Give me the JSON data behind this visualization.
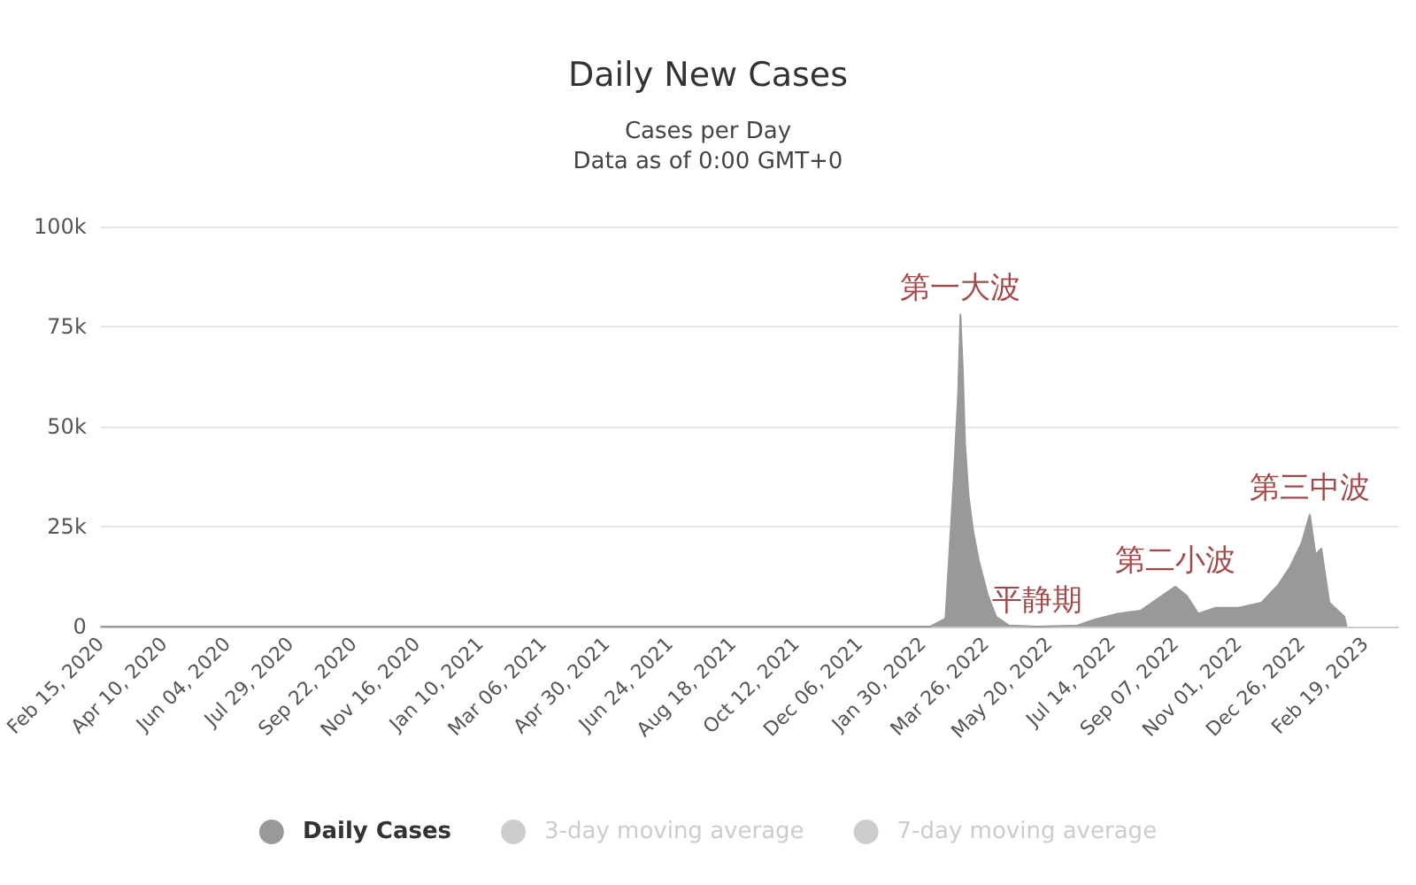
{
  "chart_data": {
    "type": "area",
    "title": "Daily New Cases",
    "subtitle": "Cases per Day\nData as of 0:00 GMT+0",
    "x": [
      "2020-02-15",
      "2022-02-01",
      "2022-02-06",
      "2022-02-19",
      "2022-02-26",
      "2022-03-02",
      "2022-03-04",
      "2022-03-06",
      "2022-03-08",
      "2022-03-11",
      "2022-03-15",
      "2022-03-20",
      "2022-03-28",
      "2022-04-04",
      "2022-04-15",
      "2022-05-10",
      "2022-06-14",
      "2022-06-29",
      "2022-07-19",
      "2022-08-08",
      "2022-08-23",
      "2022-09-07",
      "2022-09-17",
      "2022-09-27",
      "2022-10-12",
      "2022-11-01",
      "2022-11-21",
      "2022-12-06",
      "2022-12-16",
      "2022-12-26",
      "2023-01-02",
      "2023-01-07",
      "2023-01-12",
      "2023-01-19",
      "2023-02-01",
      "2023-02-03"
    ],
    "series": [
      {
        "name": "Daily Cases",
        "color": "#999999",
        "values": [
          0,
          0,
          0,
          2000,
          36000,
          58000,
          78000,
          65000,
          46000,
          33000,
          24000,
          16500,
          7700,
          2500,
          300,
          0,
          300,
          1800,
          3200,
          4000,
          7000,
          10000,
          7700,
          3200,
          4700,
          4700,
          6000,
          10600,
          15000,
          21000,
          28000,
          18000,
          19500,
          6000,
          2500,
          0
        ]
      },
      {
        "name": "3-day moving average",
        "color": "#cccccc",
        "values": [
          null,
          null,
          null,
          null,
          null,
          null,
          null,
          null,
          null,
          null,
          null,
          null,
          null,
          null,
          null,
          null,
          null,
          null,
          null,
          null,
          null,
          null,
          null,
          null,
          null,
          null,
          null,
          null,
          null,
          null,
          null,
          null,
          null,
          null,
          null,
          null
        ]
      },
      {
        "name": "7-day moving average",
        "color": "#cccccc",
        "values": [
          null,
          null,
          null,
          null,
          null,
          null,
          null,
          null,
          null,
          null,
          null,
          null,
          null,
          null,
          null,
          null,
          null,
          null,
          null,
          null,
          null,
          null,
          null,
          null,
          null,
          null,
          null,
          null,
          null,
          null,
          null,
          null,
          null,
          null,
          null,
          null
        ]
      }
    ],
    "xlim": [
      "2020-02-15",
      "2023-03-20"
    ],
    "xticks": [
      {
        "value": "2020-02-15",
        "label": "Feb 15, 2020"
      },
      {
        "value": "2020-04-10",
        "label": "Apr 10, 2020"
      },
      {
        "value": "2020-06-04",
        "label": "Jun 04, 2020"
      },
      {
        "value": "2020-07-29",
        "label": "Jul 29, 2020"
      },
      {
        "value": "2020-09-22",
        "label": "Sep 22, 2020"
      },
      {
        "value": "2020-11-16",
        "label": "Nov 16, 2020"
      },
      {
        "value": "2021-01-10",
        "label": "Jan 10, 2021"
      },
      {
        "value": "2021-03-06",
        "label": "Mar 06, 2021"
      },
      {
        "value": "2021-04-30",
        "label": "Apr 30, 2021"
      },
      {
        "value": "2021-06-24",
        "label": "Jun 24, 2021"
      },
      {
        "value": "2021-08-18",
        "label": "Aug 18, 2021"
      },
      {
        "value": "2021-10-12",
        "label": "Oct 12, 2021"
      },
      {
        "value": "2021-12-06",
        "label": "Dec 06, 2021"
      },
      {
        "value": "2022-01-30",
        "label": "Jan 30, 2022"
      },
      {
        "value": "2022-03-26",
        "label": "Mar 26, 2022"
      },
      {
        "value": "2022-05-20",
        "label": "May 20, 2022"
      },
      {
        "value": "2022-07-14",
        "label": "Jul 14, 2022"
      },
      {
        "value": "2022-09-07",
        "label": "Sep 07, 2022"
      },
      {
        "value": "2022-11-01",
        "label": "Nov 01, 2022"
      },
      {
        "value": "2022-12-26",
        "label": "Dec 26, 2022"
      },
      {
        "value": "2023-02-19",
        "label": "Feb 19, 2023"
      }
    ],
    "ylim": [
      0,
      100000
    ],
    "yticks": [
      {
        "value": 0,
        "label": "0"
      },
      {
        "value": 25000,
        "label": "25k"
      },
      {
        "value": 50000,
        "label": "50k"
      },
      {
        "value": 75000,
        "label": "75k"
      },
      {
        "value": 100000,
        "label": "100k"
      }
    ],
    "grid": "y",
    "legend": "bottom",
    "marker": "none",
    "annotations": [
      {
        "text": "第一大波",
        "x": "2022-03-04",
        "y": 78000
      },
      {
        "text": "平静期",
        "x": "2022-05-10",
        "y": 0
      },
      {
        "text": "第二小波",
        "x": "2022-09-07",
        "y": 10000
      },
      {
        "text": "第三中波",
        "x": "2023-01-02",
        "y": 28000
      }
    ]
  }
}
